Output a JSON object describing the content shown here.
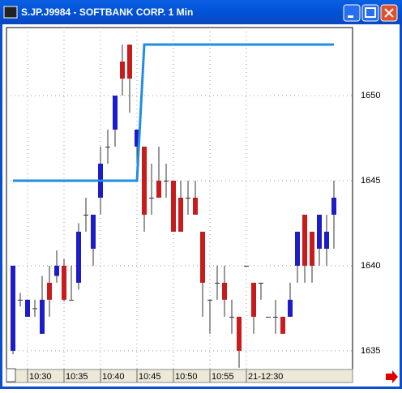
{
  "chart_data": {
    "type": "candlestick",
    "title": "S.JP.J9984 - SOFTBANK CORP. 1 Min",
    "categories": [
      null,
      null,
      "10:30",
      null,
      null,
      null,
      null,
      "10:35",
      null,
      null,
      null,
      null,
      "10:40",
      null,
      null,
      null,
      null,
      "10:45",
      null,
      null,
      null,
      null,
      "10:50",
      null,
      null,
      null,
      null,
      "10:55",
      null,
      null,
      null,
      null,
      "21-12:30",
      null,
      null,
      null,
      null,
      null,
      null,
      null,
      null,
      null,
      null,
      null,
      null
    ],
    "open": [
      1635,
      1638,
      1637,
      1637.5,
      1636,
      1639,
      1639.4,
      1640,
      1638,
      1639,
      1643,
      1641,
      1644,
      1647,
      1648,
      1652,
      1653,
      1647,
      1647,
      1644,
      1645,
      1645,
      1645,
      1644,
      1644,
      1644,
      1642,
      1638,
      1639,
      1639,
      1637,
      1637,
      1640,
      1639,
      1639,
      1637,
      1637,
      1637,
      1637,
      1640,
      1643,
      1642,
      1641,
      1641,
      1643
    ],
    "high": [
      1640,
      1638.4,
      1638,
      1638,
      1639.4,
      1640,
      1640.9,
      1640.4,
      1640,
      1642.5,
      1644,
      1643,
      1647,
      1648,
      1650,
      1653,
      1653,
      1648,
      1647,
      1646,
      1647,
      1646,
      1645,
      1645,
      1645,
      1645,
      1642,
      1638,
      1640,
      1640,
      1638,
      1637,
      1640,
      1639,
      1639,
      1637,
      1638,
      1637,
      1639,
      1642,
      1643,
      1642,
      1643,
      1643,
      1645
    ],
    "low": [
      1634.8,
      1637.6,
      1637,
      1637,
      1636,
      1637,
      1639,
      1637.9,
      1638,
      1638.6,
      1642,
      1640,
      1643,
      1646,
      1647,
      1650,
      1649,
      1646,
      1642,
      1643,
      1644,
      1644,
      1642,
      1642,
      1643,
      1643,
      1637,
      1636,
      1638,
      1637,
      1636,
      1634,
      1640,
      1636,
      1638,
      1637,
      1636,
      1636,
      1637,
      1639,
      1639,
      1639,
      1640,
      1640,
      1641
    ],
    "close": [
      1640,
      1638,
      1638,
      1637.5,
      1638,
      1638,
      1640,
      1638,
      1638,
      1642,
      1643,
      1643,
      1646,
      1647,
      1650,
      1651,
      1651,
      1648,
      1643,
      1644,
      1644,
      1645,
      1642,
      1642,
      1644,
      1643,
      1639,
      1638,
      1639,
      1638,
      1637,
      1635,
      1640,
      1637,
      1639,
      1637,
      1637,
      1636,
      1638,
      1642,
      1640,
      1640,
      1643,
      1642,
      1644
    ],
    "up_color": "#1c1cc8",
    "down_color": "#c81c1c",
    "line": {
      "color": "#1e8ee6",
      "values": [
        1645,
        1645,
        1645,
        1645,
        1645,
        1645,
        1645,
        1645,
        1645,
        1645,
        1645,
        1645,
        1645,
        1645,
        1645,
        1645,
        1645,
        1645,
        1653,
        1653,
        1653,
        1653,
        1653,
        1653,
        1653,
        1653,
        1653,
        1653,
        1653,
        1653,
        1653,
        1653,
        1653,
        1653,
        1653,
        1653,
        1653,
        1653,
        1653,
        1653,
        1653,
        1653,
        1653,
        1653,
        1653
      ]
    },
    "ylim": [
      1633.9,
      1654
    ],
    "yticks": [
      1635,
      1640,
      1645,
      1650
    ],
    "y_axis_side": "right",
    "grid": true
  }
}
